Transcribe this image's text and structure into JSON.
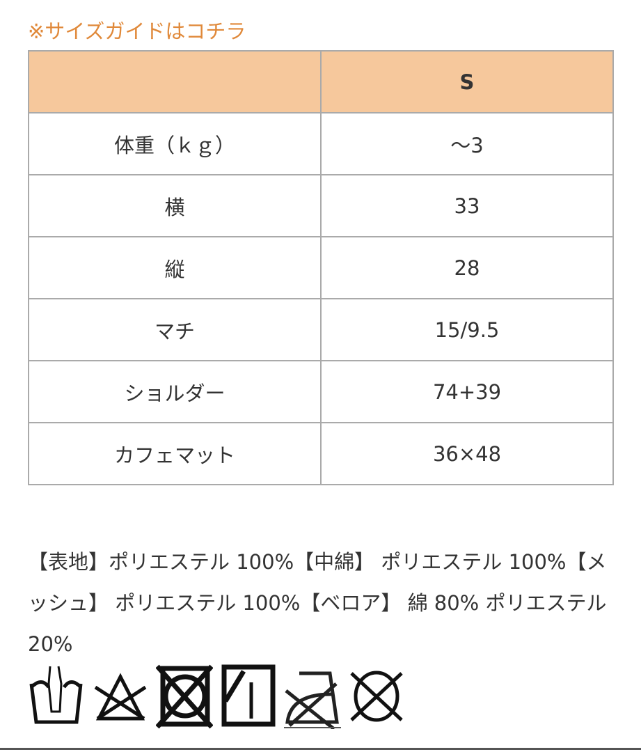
{
  "title": "※サイズガイドはコチラ",
  "table": {
    "header": [
      "",
      "S"
    ],
    "rows": [
      [
        "体重（ｋｇ）",
        "～3"
      ],
      [
        "横",
        "33"
      ],
      [
        "縦",
        "28"
      ],
      [
        "マチ",
        "15/9.5"
      ],
      [
        "ショルダー",
        "74+39"
      ],
      [
        "カフェマット",
        "36×48"
      ]
    ]
  },
  "material": "【表地】ポリエステル 100%【中綿】 ポリエステル 100%【メッシュ】 ポリエステル 100%【ベロア】 綿 80% ポリエステル 20%",
  "care_icons": [
    "hand-wash-icon",
    "no-bleach-icon",
    "no-tumble-dry-icon",
    "shade-line-dry-icon",
    "no-iron-icon",
    "no-dry-clean-icon"
  ]
}
